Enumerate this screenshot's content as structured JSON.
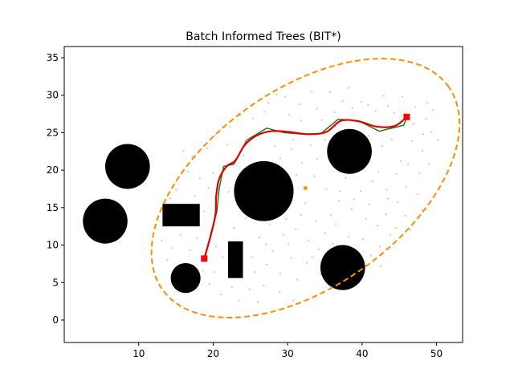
{
  "chart_data": {
    "type": "scatter",
    "title": "Batch Informed Trees (BIT*)",
    "xlabel": "",
    "ylabel": "",
    "xlim": [
      0,
      53.5
    ],
    "ylim": [
      -3,
      36.5
    ],
    "x_ticks": [
      10,
      20,
      30,
      40,
      50
    ],
    "y_ticks": [
      0,
      5,
      10,
      15,
      20,
      25,
      30,
      35
    ],
    "grid": false,
    "colors": {
      "obstacle": "#000000",
      "samples": "#c8c8c8",
      "tree_path": "#1f7a1f",
      "solution_path": "#e00000",
      "ellipse": "#ff8c00",
      "endpoints": "#ff0000"
    },
    "obstacles": {
      "circles": [
        {
          "cx": 8.5,
          "cy": 20.5,
          "r": 3.0
        },
        {
          "cx": 5.5,
          "cy": 13.2,
          "r": 3.0
        },
        {
          "cx": 16.3,
          "cy": 5.6,
          "r": 2.0
        },
        {
          "cx": 26.8,
          "cy": 17.2,
          "r": 4.0
        },
        {
          "cx": 38.3,
          "cy": 22.5,
          "r": 3.0
        },
        {
          "cx": 37.4,
          "cy": 7.0,
          "r": 3.0
        }
      ],
      "rectangles": [
        {
          "x0": 13.2,
          "y0": 12.5,
          "x1": 18.2,
          "y1": 15.5
        },
        {
          "x0": 22.0,
          "y0": 5.6,
          "x1": 24.0,
          "y1": 10.5
        }
      ]
    },
    "start": {
      "x": 18.8,
      "y": 8.2
    },
    "goal": {
      "x": 46.0,
      "y": 27.1
    },
    "ellipse_center": {
      "x": 32.4,
      "y": 17.6
    },
    "ellipse": {
      "cx": 32.4,
      "cy": 17.6,
      "a": 23.5,
      "b": 13.2,
      "angle_deg": 35
    },
    "tree_path": [
      [
        18.8,
        8.2
      ],
      [
        20.5,
        14.5
      ],
      [
        20.8,
        17.5
      ],
      [
        21.4,
        20.5
      ],
      [
        22.8,
        20.8
      ],
      [
        24.5,
        24.0
      ],
      [
        27.2,
        25.6
      ],
      [
        29.5,
        25.0
      ],
      [
        32.0,
        24.8
      ],
      [
        34.5,
        24.9
      ],
      [
        36.8,
        26.8
      ],
      [
        39.5,
        26.6
      ],
      [
        42.3,
        25.2
      ],
      [
        45.6,
        26.0
      ],
      [
        46.0,
        27.1
      ]
    ],
    "solution_path": [
      [
        18.8,
        8.2
      ],
      [
        19.6,
        11.0
      ],
      [
        20.3,
        14.0
      ],
      [
        20.4,
        16.5
      ],
      [
        20.8,
        18.8
      ],
      [
        21.8,
        20.5
      ],
      [
        23.0,
        21.3
      ],
      [
        24.2,
        23.3
      ],
      [
        25.8,
        24.6
      ],
      [
        27.8,
        25.2
      ],
      [
        30.2,
        25.1
      ],
      [
        32.8,
        24.8
      ],
      [
        35.2,
        25.1
      ],
      [
        37.2,
        26.6
      ],
      [
        39.6,
        26.5
      ],
      [
        42.0,
        25.8
      ],
      [
        44.4,
        25.9
      ],
      [
        46.0,
        27.1
      ]
    ],
    "samples": [
      [
        28.5,
        30.1
      ],
      [
        29.7,
        29.8
      ],
      [
        27.4,
        29.0
      ],
      [
        25.1,
        28.6
      ],
      [
        31.6,
        28.8
      ],
      [
        33.9,
        28.2
      ],
      [
        35.7,
        30.4
      ],
      [
        37.4,
        29.2
      ],
      [
        39.9,
        29.1
      ],
      [
        41.8,
        27.9
      ],
      [
        43.5,
        28.6
      ],
      [
        45.4,
        29.8
      ],
      [
        47.1,
        28.4
      ],
      [
        48.6,
        26.9
      ],
      [
        49.3,
        25.1
      ],
      [
        50.2,
        24.0
      ],
      [
        48.1,
        22.6
      ],
      [
        46.7,
        23.9
      ],
      [
        45.2,
        21.2
      ],
      [
        44.6,
        19.5
      ],
      [
        43.3,
        17.4
      ],
      [
        45.9,
        17.8
      ],
      [
        47.7,
        19.6
      ],
      [
        49.0,
        20.8
      ],
      [
        41.4,
        18.5
      ],
      [
        39.8,
        17.2
      ],
      [
        41.0,
        15.4
      ],
      [
        43.2,
        14.1
      ],
      [
        44.8,
        15.7
      ],
      [
        42.1,
        12.6
      ],
      [
        40.5,
        13.5
      ],
      [
        38.6,
        14.8
      ],
      [
        36.9,
        15.9
      ],
      [
        35.2,
        17.5
      ],
      [
        33.6,
        19.2
      ],
      [
        31.9,
        21.0
      ],
      [
        34.0,
        21.5
      ],
      [
        35.6,
        23.0
      ],
      [
        33.1,
        23.3
      ],
      [
        30.5,
        22.8
      ],
      [
        29.0,
        21.6
      ],
      [
        31.2,
        19.4
      ],
      [
        32.4,
        15.6
      ],
      [
        33.8,
        13.2
      ],
      [
        35.0,
        11.6
      ],
      [
        36.5,
        12.8
      ],
      [
        38.2,
        11.1
      ],
      [
        40.1,
        10.8
      ],
      [
        42.4,
        9.8
      ],
      [
        43.8,
        11.4
      ],
      [
        41.2,
        8.6
      ],
      [
        39.6,
        6.1
      ],
      [
        42.5,
        7.2
      ],
      [
        34.2,
        9.4
      ],
      [
        32.8,
        10.6
      ],
      [
        31.1,
        12.1
      ],
      [
        29.4,
        11.4
      ],
      [
        27.6,
        12.8
      ],
      [
        26.2,
        11.0
      ],
      [
        28.0,
        9.2
      ],
      [
        30.5,
        8.3
      ],
      [
        32.6,
        7.6
      ],
      [
        34.4,
        6.1
      ],
      [
        31.3,
        5.4
      ],
      [
        29.0,
        6.2
      ],
      [
        27.2,
        7.4
      ],
      [
        25.6,
        6.4
      ],
      [
        26.8,
        4.6
      ],
      [
        28.9,
        3.7
      ],
      [
        30.8,
        2.6
      ],
      [
        26.0,
        2.4
      ],
      [
        23.4,
        2.6
      ],
      [
        21.0,
        3.4
      ],
      [
        19.5,
        4.8
      ],
      [
        18.6,
        6.6
      ],
      [
        20.4,
        9.8
      ],
      [
        21.3,
        8.4
      ],
      [
        22.8,
        12.3
      ],
      [
        24.4,
        13.6
      ],
      [
        23.2,
        15.4
      ],
      [
        22.1,
        17.1
      ],
      [
        19.4,
        17.6
      ],
      [
        18.2,
        18.9
      ],
      [
        16.6,
        19.8
      ],
      [
        15.0,
        17.4
      ],
      [
        14.2,
        16.2
      ],
      [
        15.6,
        11.4
      ],
      [
        14.4,
        9.6
      ],
      [
        13.8,
        8.0
      ],
      [
        16.9,
        9.3
      ],
      [
        17.2,
        21.8
      ],
      [
        16.0,
        22.6
      ],
      [
        19.2,
        22.9
      ],
      [
        20.3,
        24.6
      ],
      [
        22.3,
        25.8
      ],
      [
        23.6,
        27.3
      ],
      [
        25.4,
        26.9
      ],
      [
        26.9,
        27.8
      ],
      [
        30.2,
        27.4
      ],
      [
        31.8,
        26.6
      ],
      [
        34.6,
        26.7
      ],
      [
        36.3,
        27.7
      ],
      [
        38.7,
        28.3
      ],
      [
        40.8,
        28.7
      ],
      [
        44.3,
        27.6
      ],
      [
        46.9,
        26.2
      ],
      [
        48.2,
        24.8
      ],
      [
        44.0,
        24.1
      ],
      [
        42.7,
        23.2
      ],
      [
        41.1,
        21.9
      ],
      [
        40.2,
        20.1
      ],
      [
        36.2,
        20.6
      ],
      [
        37.8,
        19.0
      ],
      [
        38.9,
        16.1
      ],
      [
        46.2,
        20.8
      ],
      [
        47.5,
        16.8
      ],
      [
        45.8,
        13.9
      ],
      [
        44.6,
        12.3
      ],
      [
        46.5,
        12.0
      ],
      [
        39.2,
        8.9
      ],
      [
        36.1,
        10.2
      ],
      [
        33.3,
        8.4
      ],
      [
        30.1,
        10.1
      ],
      [
        27.1,
        10.1
      ],
      [
        25.2,
        8.4
      ],
      [
        24.9,
        4.1
      ],
      [
        22.5,
        4.4
      ],
      [
        20.2,
        6.4
      ],
      [
        17.8,
        10.9
      ],
      [
        13.1,
        10.6
      ],
      [
        14.6,
        6.2
      ],
      [
        21.9,
        23.4
      ],
      [
        24.1,
        22.0
      ],
      [
        28.3,
        23.2
      ],
      [
        30.8,
        24.1
      ],
      [
        35.0,
        24.0
      ],
      [
        36.4,
        25.8
      ],
      [
        40.9,
        24.6
      ],
      [
        39.4,
        24.5
      ],
      [
        48.8,
        29.0
      ],
      [
        49.5,
        28.0
      ],
      [
        42.9,
        29.9
      ],
      [
        33.2,
        30.5
      ],
      [
        38.2,
        31.0
      ],
      [
        48.1,
        14.7
      ],
      [
        43.5,
        16.2
      ],
      [
        31.8,
        14.0
      ],
      [
        29.8,
        13.5
      ],
      [
        25.0,
        15.0
      ],
      [
        18.8,
        14.5
      ],
      [
        13.7,
        13.8
      ],
      [
        17.5,
        16.6
      ],
      [
        20.0,
        19.6
      ],
      [
        35.8,
        14.0
      ],
      [
        37.0,
        17.2
      ],
      [
        42.2,
        19.8
      ]
    ]
  }
}
